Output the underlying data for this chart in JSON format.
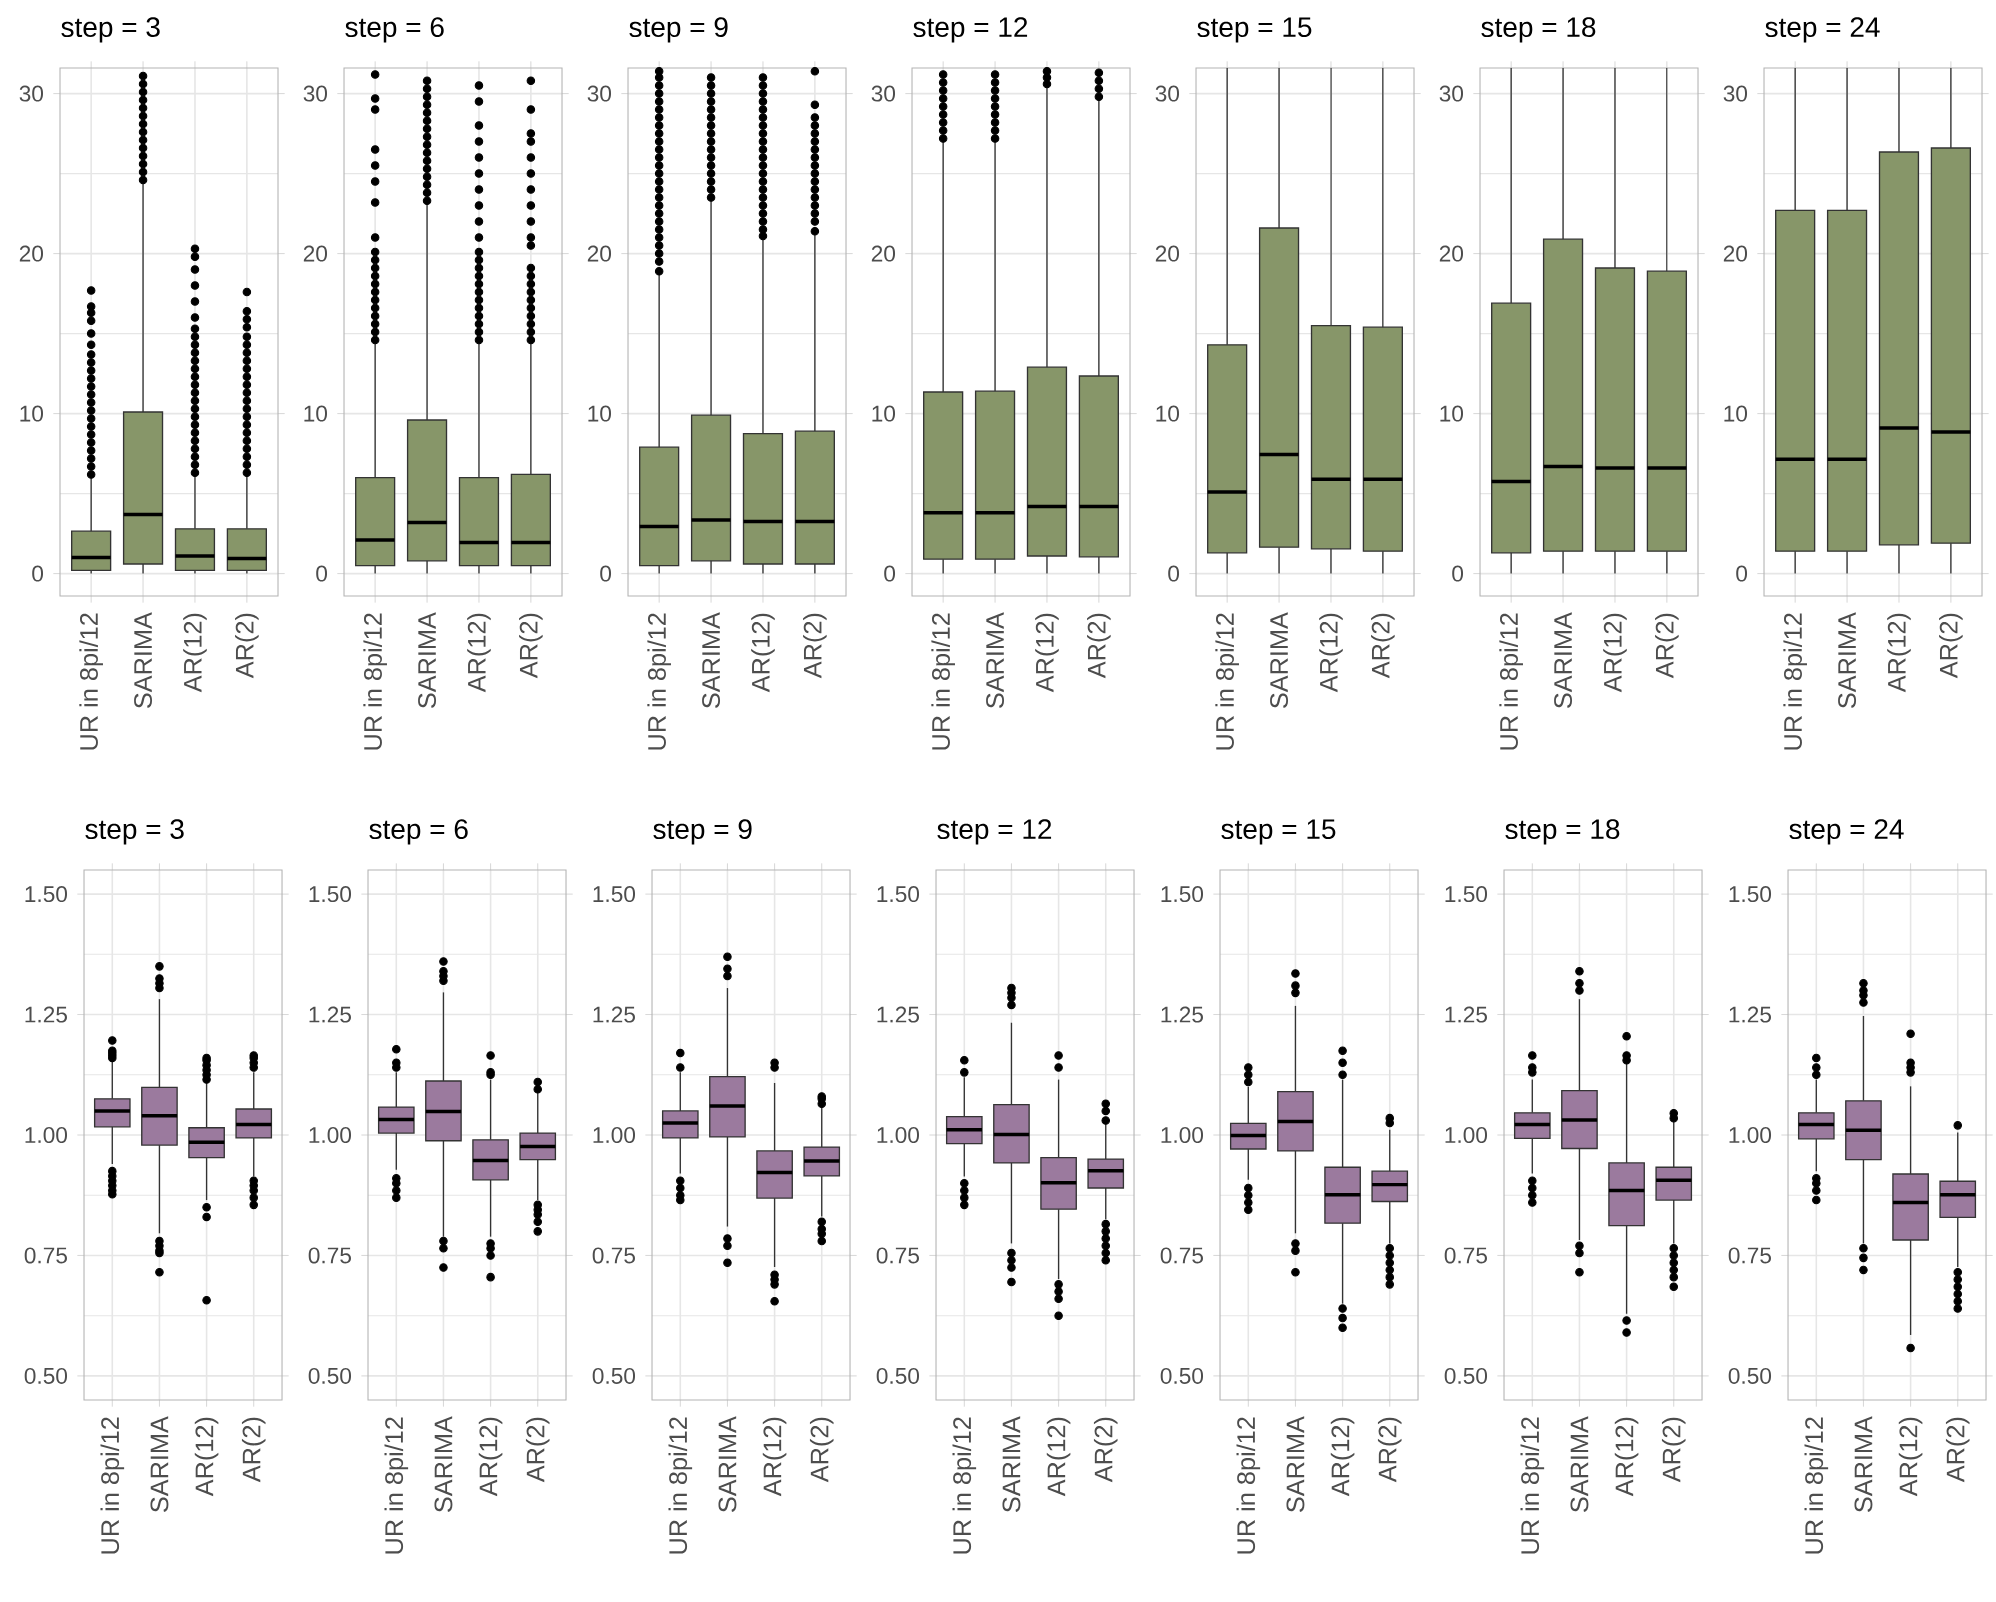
{
  "chart_data": [
    {
      "type": "box",
      "title": "step = 3",
      "categories": [
        "UR in 8pi/12",
        "SARIMA",
        "AR(12)",
        "AR(2)"
      ],
      "color": "#879669",
      "marker": "circle",
      "grid": true,
      "ylim": [
        -1.4,
        31.6
      ],
      "yticks": [
        0,
        10,
        20,
        30
      ],
      "boxes": [
        {
          "low": 0,
          "q1": 0.2,
          "median": 1.0,
          "q3": 2.65,
          "high": 6.05,
          "outliers": [
            6.2,
            6.7,
            7.2,
            7.7,
            8.2,
            8.7,
            9.2,
            9.7,
            10.2,
            10.7,
            11.2,
            11.7,
            12.2,
            12.7,
            13.2,
            13.7,
            14.3,
            15.0,
            15.8,
            16.3,
            16.7,
            17.7
          ]
        },
        {
          "low": 0,
          "q1": 0.6,
          "median": 3.7,
          "q3": 10.1,
          "high": 24.5,
          "outliers": [
            24.6,
            25.1,
            25.6,
            26.1,
            26.6,
            27.1,
            27.6,
            28.1,
            28.6,
            29.1,
            29.6,
            30.1,
            30.6,
            31.1
          ]
        },
        {
          "low": 0,
          "q1": 0.2,
          "median": 1.1,
          "q3": 2.8,
          "high": 6.1,
          "outliers": [
            6.3,
            6.8,
            7.3,
            7.8,
            8.3,
            8.8,
            9.3,
            9.8,
            10.3,
            10.8,
            11.3,
            11.8,
            12.3,
            12.8,
            13.3,
            13.8,
            14.3,
            14.8,
            15.3,
            16.0,
            17.0,
            18.0,
            19.0,
            19.8,
            20.3
          ]
        },
        {
          "low": 0,
          "q1": 0.2,
          "median": 0.95,
          "q3": 2.8,
          "high": 6.1,
          "outliers": [
            6.3,
            6.8,
            7.3,
            7.8,
            8.3,
            8.8,
            9.3,
            9.8,
            10.3,
            10.8,
            11.3,
            11.8,
            12.3,
            12.8,
            13.3,
            13.8,
            14.3,
            14.8,
            15.4,
            15.9,
            16.4,
            17.6
          ]
        }
      ]
    },
    {
      "type": "box",
      "title": "step = 6",
      "categories": [
        "UR in 8pi/12",
        "SARIMA",
        "AR(12)",
        "AR(2)"
      ],
      "color": "#879669",
      "marker": "circle",
      "grid": true,
      "ylim": [
        -1.4,
        31.6
      ],
      "yticks": [
        0,
        10,
        20,
        30
      ],
      "boxes": [
        {
          "low": 0,
          "q1": 0.5,
          "median": 2.1,
          "q3": 6.0,
          "high": 14.4,
          "outliers": [
            14.6,
            15.1,
            15.6,
            16.1,
            16.6,
            17.1,
            17.6,
            18.1,
            18.6,
            19.1,
            19.6,
            20.1,
            21.0,
            23.2,
            24.5,
            25.5,
            26.5,
            29.0,
            29.7,
            31.2
          ]
        },
        {
          "low": 0,
          "q1": 0.8,
          "median": 3.2,
          "q3": 9.6,
          "high": 23.1,
          "outliers": [
            23.3,
            23.8,
            24.3,
            24.8,
            25.3,
            25.8,
            26.3,
            26.8,
            27.3,
            27.8,
            28.3,
            28.8,
            29.3,
            29.8,
            30.3,
            30.8
          ]
        },
        {
          "low": 0,
          "q1": 0.5,
          "median": 1.95,
          "q3": 6.0,
          "high": 14.4,
          "outliers": [
            14.6,
            15.1,
            15.6,
            16.1,
            16.6,
            17.1,
            17.6,
            18.1,
            18.6,
            19.1,
            19.6,
            20.1,
            21.0,
            22.0,
            23.0,
            24.0,
            25.0,
            26.0,
            27.0,
            28.0,
            29.5,
            30.5
          ]
        },
        {
          "low": 0,
          "q1": 0.5,
          "median": 1.95,
          "q3": 6.2,
          "high": 14.4,
          "outliers": [
            14.6,
            15.1,
            15.6,
            16.1,
            16.6,
            17.1,
            17.6,
            18.1,
            18.6,
            19.1,
            20.5,
            21.0,
            22.0,
            23.0,
            24.0,
            25.0,
            26.0,
            27.0,
            27.5,
            29.0,
            30.8
          ]
        }
      ]
    },
    {
      "type": "box",
      "title": "step = 9",
      "categories": [
        "UR in 8pi/12",
        "SARIMA",
        "AR(12)",
        "AR(2)"
      ],
      "color": "#879669",
      "marker": "circle",
      "grid": true,
      "ylim": [
        -1.4,
        31.6
      ],
      "yticks": [
        0,
        10,
        20,
        30
      ],
      "boxes": [
        {
          "low": 0,
          "q1": 0.5,
          "median": 2.95,
          "q3": 7.9,
          "high": 18.75,
          "outliers": [
            18.9,
            19.5,
            20.0,
            20.5,
            21.0,
            21.5,
            22.0,
            22.5,
            23.0,
            23.5,
            24.0,
            24.5,
            25.0,
            25.5,
            26.0,
            26.5,
            27.0,
            27.5,
            28.0,
            28.5,
            29.0,
            29.5,
            30.0,
            30.5,
            31.0,
            31.4
          ]
        },
        {
          "low": 0,
          "q1": 0.8,
          "median": 3.35,
          "q3": 9.9,
          "high": 23.3,
          "outliers": [
            23.5,
            24.0,
            24.5,
            25.0,
            25.5,
            26.0,
            26.5,
            27.0,
            27.5,
            28.0,
            28.5,
            29.0,
            29.5,
            30.0,
            30.5,
            31.0
          ]
        },
        {
          "low": 0,
          "q1": 0.6,
          "median": 3.25,
          "q3": 8.75,
          "high": 20.9,
          "outliers": [
            21.1,
            21.5,
            22.0,
            22.5,
            23.0,
            23.5,
            24.0,
            24.5,
            25.0,
            25.5,
            26.0,
            26.5,
            27.0,
            27.5,
            28.0,
            28.5,
            29.0,
            29.5,
            30.0,
            30.5,
            31.0
          ]
        },
        {
          "low": 0,
          "q1": 0.6,
          "median": 3.25,
          "q3": 8.9,
          "high": 21.2,
          "outliers": [
            21.4,
            22.0,
            22.5,
            23.0,
            23.5,
            24.0,
            24.5,
            25.0,
            25.5,
            26.0,
            26.5,
            27.0,
            27.5,
            28.0,
            28.5,
            29.3,
            31.4
          ]
        }
      ]
    },
    {
      "type": "box",
      "title": "step = 12",
      "categories": [
        "UR in 8pi/12",
        "SARIMA",
        "AR(12)",
        "AR(2)"
      ],
      "color": "#879669",
      "marker": "circle",
      "grid": true,
      "ylim": [
        -1.4,
        31.6
      ],
      "yticks": [
        0,
        10,
        20,
        30
      ],
      "boxes": [
        {
          "low": 0,
          "q1": 0.9,
          "median": 3.8,
          "q3": 11.35,
          "high": 27.0,
          "outliers": [
            27.2,
            27.7,
            28.2,
            28.7,
            29.2,
            29.7,
            30.2,
            30.7,
            31.2
          ]
        },
        {
          "low": 0,
          "q1": 0.9,
          "median": 3.8,
          "q3": 11.4,
          "high": 27.0,
          "outliers": [
            27.2,
            27.7,
            28.2,
            28.7,
            29.2,
            29.7,
            30.2,
            30.7,
            31.2
          ]
        },
        {
          "low": 0,
          "q1": 1.1,
          "median": 4.2,
          "q3": 12.9,
          "high": 30.4,
          "outliers": [
            30.6,
            31.0,
            31.4
          ]
        },
        {
          "low": 0,
          "q1": 1.05,
          "median": 4.2,
          "q3": 12.35,
          "high": 29.6,
          "outliers": [
            29.8,
            30.3,
            30.8,
            31.3
          ]
        }
      ]
    },
    {
      "type": "box",
      "title": "step = 15",
      "categories": [
        "UR in 8pi/12",
        "SARIMA",
        "AR(12)",
        "AR(2)"
      ],
      "color": "#879669",
      "marker": "circle",
      "grid": true,
      "ylim": [
        -1.4,
        31.6
      ],
      "yticks": [
        0,
        10,
        20,
        30
      ],
      "boxes": [
        {
          "low": 0,
          "q1": 1.3,
          "median": 5.1,
          "q3": 14.3,
          "high": 31.6
        },
        {
          "low": 0,
          "q1": 1.65,
          "median": 7.45,
          "q3": 21.6,
          "high": 31.6
        },
        {
          "low": 0,
          "q1": 1.55,
          "median": 5.9,
          "q3": 15.5,
          "high": 31.6
        },
        {
          "low": 0,
          "q1": 1.4,
          "median": 5.9,
          "q3": 15.4,
          "high": 31.6
        }
      ]
    },
    {
      "type": "box",
      "title": "step = 18",
      "categories": [
        "UR in 8pi/12",
        "SARIMA",
        "AR(12)",
        "AR(2)"
      ],
      "color": "#879669",
      "marker": "circle",
      "grid": true,
      "ylim": [
        -1.4,
        31.6
      ],
      "yticks": [
        0,
        10,
        20,
        30
      ],
      "boxes": [
        {
          "low": 0,
          "q1": 1.3,
          "median": 5.75,
          "q3": 16.9,
          "high": 31.6
        },
        {
          "low": 0,
          "q1": 1.4,
          "median": 6.7,
          "q3": 20.9,
          "high": 31.6
        },
        {
          "low": 0,
          "q1": 1.4,
          "median": 6.6,
          "q3": 19.1,
          "high": 31.6
        },
        {
          "low": 0,
          "q1": 1.4,
          "median": 6.6,
          "q3": 18.9,
          "high": 31.6
        }
      ]
    },
    {
      "type": "box",
      "title": "step = 24",
      "categories": [
        "UR in 8pi/12",
        "SARIMA",
        "AR(12)",
        "AR(2)"
      ],
      "color": "#879669",
      "marker": "circle",
      "grid": true,
      "ylim": [
        -1.4,
        31.6
      ],
      "yticks": [
        0,
        10,
        20,
        30
      ],
      "boxes": [
        {
          "low": 0,
          "q1": 1.4,
          "median": 7.15,
          "q3": 22.7,
          "high": 31.6
        },
        {
          "low": 0,
          "q1": 1.4,
          "median": 7.15,
          "q3": 22.7,
          "high": 31.6
        },
        {
          "low": 0,
          "q1": 1.8,
          "median": 9.1,
          "q3": 26.35,
          "high": 31.6
        },
        {
          "low": 0,
          "q1": 1.9,
          "median": 8.85,
          "q3": 26.6,
          "high": 31.6
        }
      ]
    },
    {
      "type": "box",
      "title": "step = 3",
      "categories": [
        "UR in 8pi/12",
        "SARIMA",
        "AR(12)",
        "AR(2)"
      ],
      "color": "#9b7a9e",
      "marker": "circle",
      "grid": true,
      "ylim": [
        0.45,
        1.55
      ],
      "yticks": [
        {
          "value": 0.5,
          "label": "0.50"
        },
        {
          "value": 0.75,
          "label": "0.75"
        },
        {
          "value": 1.0,
          "label": "1.00"
        },
        {
          "value": 1.25,
          "label": "1.25"
        },
        {
          "value": 1.5,
          "label": "1.50"
        }
      ],
      "boxes": [
        {
          "low": 0.94,
          "q1": 1.017,
          "median": 1.05,
          "q3": 1.075,
          "high": 1.155,
          "outliers": [
            1.16,
            1.165,
            1.17,
            1.175,
            1.196,
            0.925,
            0.915,
            0.905,
            0.895,
            0.885,
            0.877
          ]
        },
        {
          "low": 0.796,
          "q1": 0.979,
          "median": 1.04,
          "q3": 1.099,
          "high": 1.282,
          "outliers": [
            1.305,
            1.315,
            1.325,
            1.35,
            0.78,
            0.77,
            0.76,
            0.755,
            0.715
          ]
        },
        {
          "low": 0.865,
          "q1": 0.953,
          "median": 0.985,
          "q3": 1.015,
          "high": 1.11,
          "outliers": [
            1.115,
            1.125,
            1.135,
            1.145,
            1.155,
            1.16,
            0.85,
            0.83,
            0.657
          ]
        },
        {
          "low": 0.914,
          "q1": 0.994,
          "median": 1.022,
          "q3": 1.054,
          "high": 1.13,
          "outliers": [
            1.14,
            1.15,
            1.16,
            1.165,
            0.905,
            0.895,
            0.885,
            0.87,
            0.855
          ]
        }
      ]
    },
    {
      "type": "box",
      "title": "step = 6",
      "categories": [
        "UR in 8pi/12",
        "SARIMA",
        "AR(12)",
        "AR(2)"
      ],
      "color": "#9b7a9e",
      "marker": "circle",
      "grid": true,
      "ylim": [
        0.45,
        1.55
      ],
      "yticks": [
        {
          "value": 0.5,
          "label": "0.50"
        },
        {
          "value": 0.75,
          "label": "0.75"
        },
        {
          "value": 1.0,
          "label": "1.00"
        },
        {
          "value": 1.25,
          "label": "1.25"
        },
        {
          "value": 1.5,
          "label": "1.50"
        }
      ],
      "boxes": [
        {
          "low": 0.928,
          "q1": 1.004,
          "median": 1.032,
          "q3": 1.058,
          "high": 1.13,
          "outliers": [
            1.14,
            1.15,
            1.178,
            0.91,
            0.9,
            0.885,
            0.87
          ]
        },
        {
          "low": 0.789,
          "q1": 0.988,
          "median": 1.049,
          "q3": 1.112,
          "high": 1.296,
          "outliers": [
            1.32,
            1.33,
            1.34,
            1.36,
            0.78,
            0.765,
            0.725
          ]
        },
        {
          "low": 0.789,
          "q1": 0.907,
          "median": 0.947,
          "q3": 0.99,
          "high": 1.115,
          "outliers": [
            1.125,
            1.13,
            1.165,
            0.775,
            0.765,
            0.75,
            0.705
          ]
        },
        {
          "low": 0.865,
          "q1": 0.949,
          "median": 0.976,
          "q3": 1.004,
          "high": 1.088,
          "outliers": [
            1.095,
            1.11,
            0.855,
            0.845,
            0.835,
            0.82,
            0.8
          ]
        }
      ]
    },
    {
      "type": "box",
      "title": "step = 9",
      "categories": [
        "UR in 8pi/12",
        "SARIMA",
        "AR(12)",
        "AR(2)"
      ],
      "color": "#9b7a9e",
      "marker": "circle",
      "grid": true,
      "ylim": [
        0.45,
        1.55
      ],
      "yticks": [
        {
          "value": 0.5,
          "label": "0.50"
        },
        {
          "value": 0.75,
          "label": "0.75"
        },
        {
          "value": 1.0,
          "label": "1.00"
        },
        {
          "value": 1.25,
          "label": "1.25"
        },
        {
          "value": 1.5,
          "label": "1.50"
        }
      ],
      "boxes": [
        {
          "low": 0.92,
          "q1": 0.994,
          "median": 1.025,
          "q3": 1.05,
          "high": 1.13,
          "outliers": [
            1.14,
            1.17,
            0.905,
            0.89,
            0.875,
            0.865
          ]
        },
        {
          "low": 0.81,
          "q1": 0.996,
          "median": 1.06,
          "q3": 1.121,
          "high": 1.305,
          "outliers": [
            1.33,
            1.345,
            1.37,
            0.785,
            0.77,
            0.735
          ]
        },
        {
          "low": 0.726,
          "q1": 0.869,
          "median": 0.922,
          "q3": 0.967,
          "high": 1.108,
          "outliers": [
            1.14,
            1.15,
            0.71,
            0.7,
            0.69,
            0.655
          ]
        },
        {
          "low": 0.831,
          "q1": 0.915,
          "median": 0.946,
          "q3": 0.975,
          "high": 1.06,
          "outliers": [
            1.065,
            1.075,
            1.08,
            0.82,
            0.805,
            0.795,
            0.78
          ]
        }
      ]
    },
    {
      "type": "box",
      "title": "step = 12",
      "categories": [
        "UR in 8pi/12",
        "SARIMA",
        "AR(12)",
        "AR(2)"
      ],
      "color": "#9b7a9e",
      "marker": "circle",
      "grid": true,
      "ylim": [
        0.45,
        1.55
      ],
      "yticks": [
        {
          "value": 0.5,
          "label": "0.50"
        },
        {
          "value": 0.75,
          "label": "0.75"
        },
        {
          "value": 1.0,
          "label": "1.00"
        },
        {
          "value": 1.25,
          "label": "1.25"
        },
        {
          "value": 1.5,
          "label": "1.50"
        }
      ],
      "boxes": [
        {
          "low": 0.914,
          "q1": 0.982,
          "median": 1.011,
          "q3": 1.038,
          "high": 1.12,
          "outliers": [
            1.13,
            1.155,
            0.9,
            0.885,
            0.87,
            0.855
          ]
        },
        {
          "low": 0.775,
          "q1": 0.942,
          "median": 1.001,
          "q3": 1.063,
          "high": 1.233,
          "outliers": [
            1.27,
            1.285,
            1.295,
            1.305,
            0.755,
            0.74,
            0.725,
            0.695
          ]
        },
        {
          "low": 0.701,
          "q1": 0.846,
          "median": 0.901,
          "q3": 0.953,
          "high": 1.115,
          "outliers": [
            1.14,
            1.165,
            0.69,
            0.675,
            0.66,
            0.625
          ]
        },
        {
          "low": 0.825,
          "q1": 0.89,
          "median": 0.926,
          "q3": 0.95,
          "high": 1.025,
          "outliers": [
            1.03,
            1.05,
            1.065,
            0.815,
            0.8,
            0.785,
            0.77,
            0.755,
            0.74
          ]
        }
      ]
    },
    {
      "type": "box",
      "title": "step = 15",
      "categories": [
        "UR in 8pi/12",
        "SARIMA",
        "AR(12)",
        "AR(2)"
      ],
      "color": "#9b7a9e",
      "marker": "circle",
      "grid": true,
      "ylim": [
        0.45,
        1.55
      ],
      "yticks": [
        {
          "value": 0.5,
          "label": "0.50"
        },
        {
          "value": 0.75,
          "label": "0.75"
        },
        {
          "value": 1.0,
          "label": "1.00"
        },
        {
          "value": 1.25,
          "label": "1.25"
        },
        {
          "value": 1.5,
          "label": "1.50"
        }
      ],
      "boxes": [
        {
          "low": 0.907,
          "q1": 0.971,
          "median": 0.999,
          "q3": 1.024,
          "high": 1.1,
          "outliers": [
            1.11,
            1.125,
            1.14,
            0.89,
            0.875,
            0.86,
            0.845
          ]
        },
        {
          "low": 0.796,
          "q1": 0.967,
          "median": 1.028,
          "q3": 1.09,
          "high": 1.268,
          "outliers": [
            1.295,
            1.31,
            1.335,
            0.775,
            0.76,
            0.715
          ]
        },
        {
          "low": 0.65,
          "q1": 0.817,
          "median": 0.876,
          "q3": 0.933,
          "high": 1.115,
          "outliers": [
            1.125,
            1.15,
            1.175,
            0.64,
            0.62,
            0.6
          ]
        },
        {
          "low": 0.775,
          "q1": 0.862,
          "median": 0.897,
          "q3": 0.925,
          "high": 1.011,
          "outliers": [
            1.025,
            1.035,
            0.765,
            0.75,
            0.735,
            0.72,
            0.705,
            0.69
          ]
        }
      ]
    },
    {
      "type": "box",
      "title": "step = 18",
      "categories": [
        "UR in 8pi/12",
        "SARIMA",
        "AR(12)",
        "AR(2)"
      ],
      "color": "#9b7a9e",
      "marker": "circle",
      "grid": true,
      "ylim": [
        0.45,
        1.55
      ],
      "yticks": [
        {
          "value": 0.5,
          "label": "0.50"
        },
        {
          "value": 0.75,
          "label": "0.75"
        },
        {
          "value": 1.0,
          "label": "1.00"
        },
        {
          "value": 1.25,
          "label": "1.25"
        },
        {
          "value": 1.5,
          "label": "1.50"
        }
      ],
      "boxes": [
        {
          "low": 0.92,
          "q1": 0.993,
          "median": 1.022,
          "q3": 1.046,
          "high": 1.115,
          "outliers": [
            1.13,
            1.14,
            1.165,
            0.905,
            0.89,
            0.875,
            0.86
          ]
        },
        {
          "low": 0.782,
          "q1": 0.972,
          "median": 1.031,
          "q3": 1.092,
          "high": 1.282,
          "outliers": [
            1.3,
            1.315,
            1.34,
            0.77,
            0.755,
            0.715
          ]
        },
        {
          "low": 0.629,
          "q1": 0.812,
          "median": 0.885,
          "q3": 0.942,
          "high": 1.15,
          "outliers": [
            1.155,
            1.165,
            1.205,
            0.615,
            0.59
          ]
        },
        {
          "low": 0.775,
          "q1": 0.865,
          "median": 0.906,
          "q3": 0.933,
          "high": 1.032,
          "outliers": [
            1.035,
            1.045,
            0.765,
            0.75,
            0.735,
            0.72,
            0.705,
            0.685
          ]
        }
      ]
    },
    {
      "type": "box",
      "title": "step = 24",
      "categories": [
        "UR in 8pi/12",
        "SARIMA",
        "AR(12)",
        "AR(2)"
      ],
      "color": "#9b7a9e",
      "marker": "circle",
      "grid": true,
      "ylim": [
        0.45,
        1.55
      ],
      "yticks": [
        {
          "value": 0.5,
          "label": "0.50"
        },
        {
          "value": 0.75,
          "label": "0.75"
        },
        {
          "value": 1.0,
          "label": "1.00"
        },
        {
          "value": 1.25,
          "label": "1.25"
        },
        {
          "value": 1.5,
          "label": "1.50"
        }
      ],
      "boxes": [
        {
          "low": 0.925,
          "q1": 0.992,
          "median": 1.022,
          "q3": 1.046,
          "high": 1.115,
          "outliers": [
            1.125,
            1.14,
            1.16,
            0.91,
            0.9,
            0.885,
            0.865
          ]
        },
        {
          "low": 0.775,
          "q1": 0.949,
          "median": 1.01,
          "q3": 1.071,
          "high": 1.247,
          "outliers": [
            1.275,
            1.29,
            1.3,
            1.315,
            0.765,
            0.745,
            0.72
          ]
        },
        {
          "low": 0.585,
          "q1": 0.782,
          "median": 0.86,
          "q3": 0.919,
          "high": 1.101,
          "outliers": [
            1.13,
            1.14,
            1.15,
            1.21,
            0.558
          ]
        },
        {
          "low": 0.726,
          "q1": 0.829,
          "median": 0.876,
          "q3": 0.904,
          "high": 1.005,
          "outliers": [
            1.02,
            0.715,
            0.7,
            0.685,
            0.67,
            0.655,
            0.64
          ]
        }
      ]
    }
  ]
}
